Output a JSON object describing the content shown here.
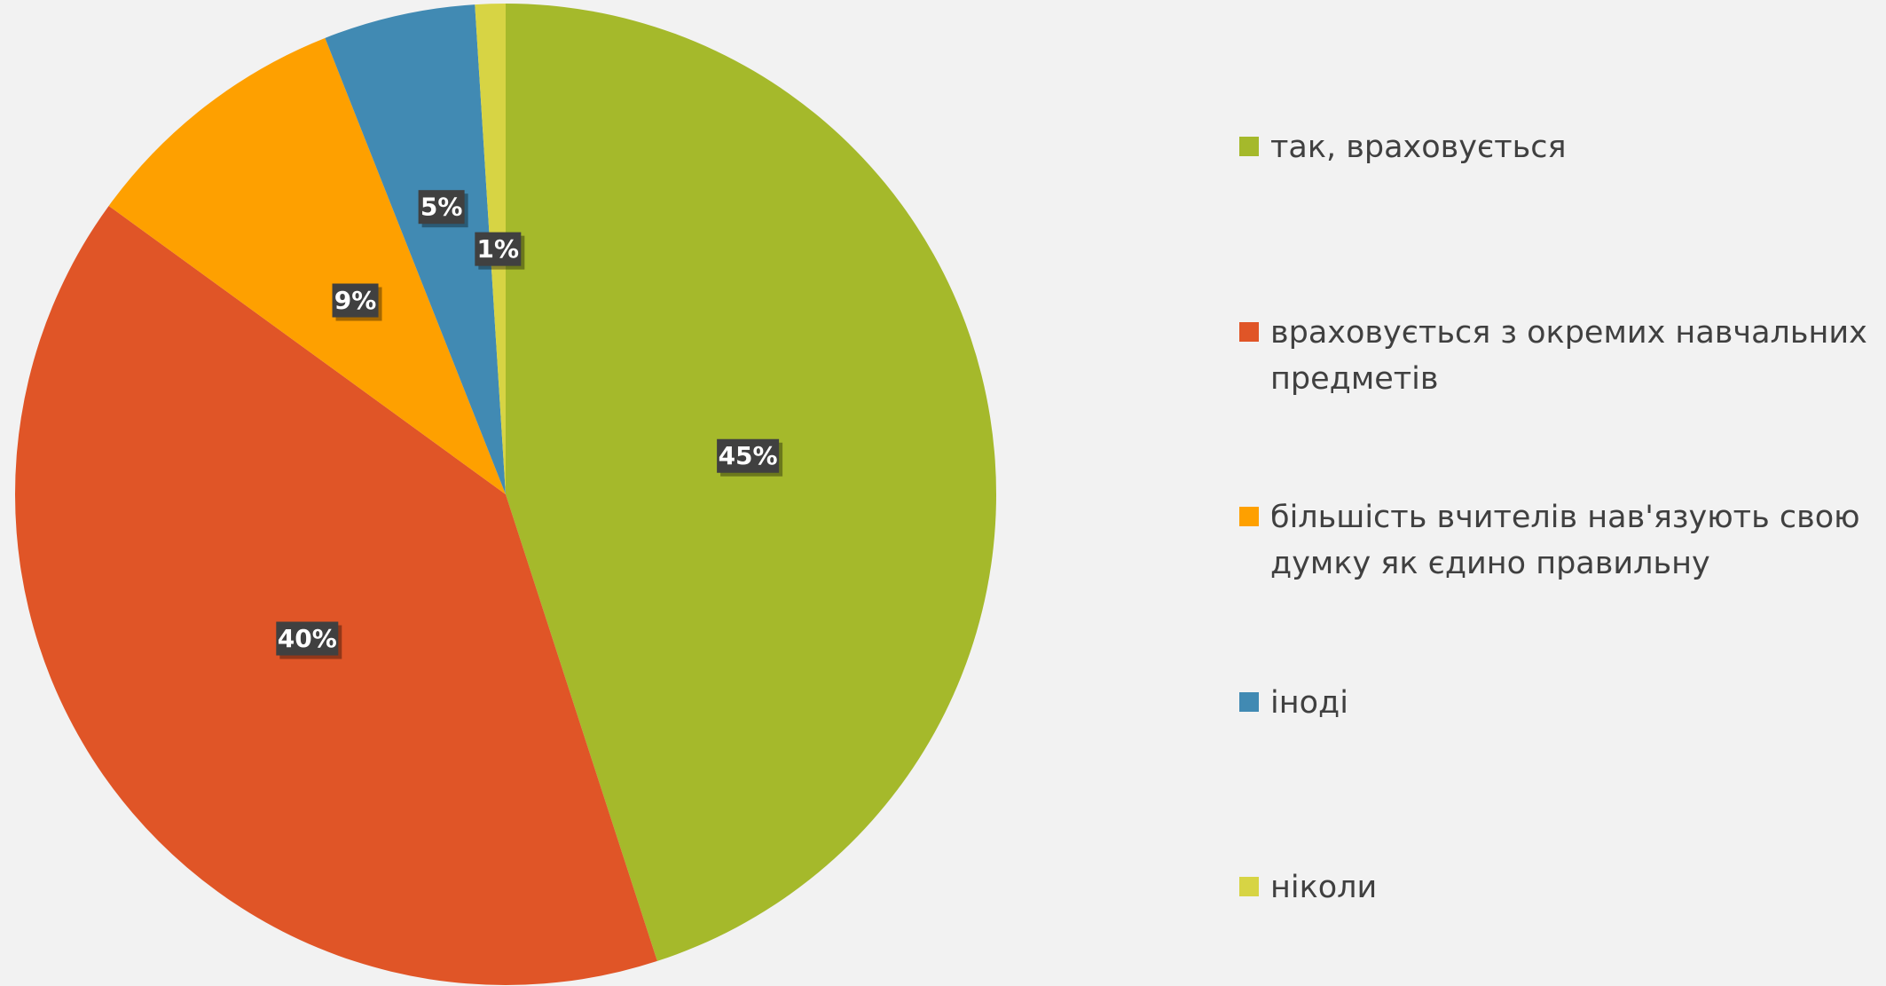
{
  "chart_data": {
    "type": "pie",
    "categories": [
      "так, враховується",
      "враховується з окремих навчальних предметів",
      "більшість вчителів нав'язують свою думку як єдино правильну",
      "іноді",
      "ніколи"
    ],
    "values": [
      45,
      40,
      9,
      5,
      1
    ],
    "value_labels": [
      "45%",
      "40%",
      "9%",
      "5%",
      "1%"
    ],
    "colors": [
      "#a5b92b",
      "#e05527",
      "#fea000",
      "#418ab3",
      "#d7d444"
    ],
    "legend": "right"
  }
}
